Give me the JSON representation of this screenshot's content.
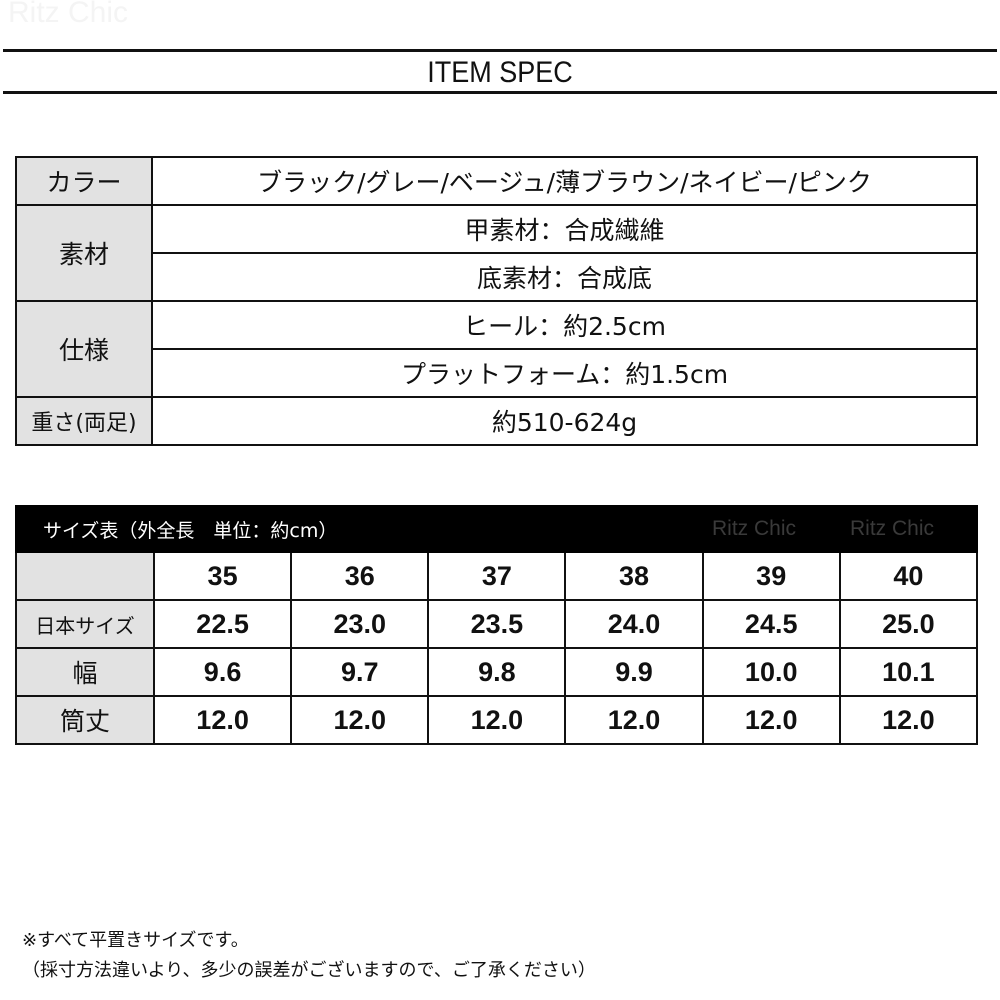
{
  "watermark": "Ritz Chic",
  "title": "ITEM SPEC",
  "spec": {
    "color_label": "カラー",
    "color_value": "ブラック/グレー/ベージュ/薄ブラウン/ネイビー/ピンク",
    "material_label": "素材",
    "material_values": [
      "甲素材：合成繊維",
      "底素材：合成底"
    ],
    "spec_label": "仕様",
    "spec_values": [
      "ヒール：約2.5cm",
      "プラットフォーム：約1.5cm"
    ],
    "weight_label": "重さ(両足)",
    "weight_value": "約510-624g"
  },
  "size_table": {
    "header": "サイズ表（外全長　単位：約cm）",
    "sizes": [
      "35",
      "36",
      "37",
      "38",
      "39",
      "40"
    ],
    "rows": [
      {
        "label": "日本サイズ",
        "values": [
          "22.5",
          "23.0",
          "23.5",
          "24.0",
          "24.5",
          "25.0"
        ]
      },
      {
        "label": "幅",
        "values": [
          "9.6",
          "9.7",
          "9.8",
          "9.9",
          "10.0",
          "10.1"
        ]
      },
      {
        "label": "筒丈",
        "values": [
          "12.0",
          "12.0",
          "12.0",
          "12.0",
          "12.0",
          "12.0"
        ]
      }
    ]
  },
  "notes": [
    "※すべて平置きサイズです。",
    "（採寸方法違いより、多少の誤差がございますので、ご了承ください）"
  ]
}
